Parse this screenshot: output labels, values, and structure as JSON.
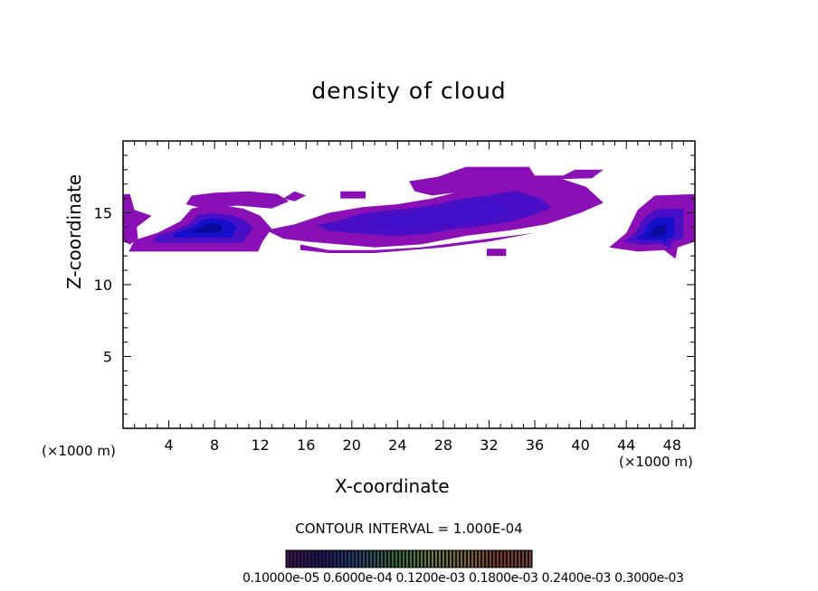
{
  "chart_data": {
    "type": "heatmap",
    "title": "density of cloud",
    "xlabel": "X-coordinate",
    "ylabel": "Z-coordinate",
    "x_unit_left": "(×1000 m)",
    "x_unit_right": "(×1000 m)",
    "xlim": [
      0,
      50
    ],
    "ylim": [
      0,
      20
    ],
    "xticks": [
      4,
      8,
      12,
      16,
      20,
      24,
      28,
      32,
      36,
      40,
      44,
      48
    ],
    "yticks": [
      5,
      10,
      15
    ],
    "contour_interval_text": "CONTOUR INTERVAL = 1.000E-04",
    "colorbar_labels_text": "0.10000e-05 0.6000e-04 0.1200e-03 0.1800e-03 0.2400e-03 0.3000e-03",
    "colors": {
      "low": "#8a10b5",
      "mid": "#4010c8",
      "high": "#1010cc",
      "core": "#0a0a9a"
    },
    "cloud_regions": [
      {
        "name": "left-edge",
        "level": 0.3,
        "points": [
          [
            0,
            13.0
          ],
          [
            0,
            16.3
          ],
          [
            0.6,
            16.3
          ],
          [
            1.0,
            15.2
          ],
          [
            2.5,
            14.8
          ],
          [
            1.2,
            14.0
          ],
          [
            1.3,
            13.2
          ],
          [
            0.6,
            12.8
          ]
        ]
      },
      {
        "name": "lower-left-layer",
        "level": 0.55,
        "points": [
          [
            0.5,
            12.3
          ],
          [
            11.8,
            12.3
          ],
          [
            12.2,
            13.0
          ],
          [
            13.0,
            13.9
          ],
          [
            12.0,
            14.8
          ],
          [
            10.5,
            15.3
          ],
          [
            8.0,
            15.6
          ],
          [
            6.0,
            15.3
          ],
          [
            5.0,
            14.4
          ],
          [
            3.0,
            13.6
          ],
          [
            1.0,
            13.1
          ]
        ]
      },
      {
        "name": "upper-left-layer",
        "level": 0.2,
        "points": [
          [
            5.5,
            15.6
          ],
          [
            6.0,
            16.2
          ],
          [
            8.0,
            16.4
          ],
          [
            11.0,
            16.5
          ],
          [
            13.5,
            16.3
          ],
          [
            14.5,
            15.8
          ],
          [
            13.0,
            15.3
          ],
          [
            10.0,
            15.5
          ],
          [
            7.0,
            15.3
          ]
        ]
      },
      {
        "name": "small-upper-left",
        "level": 0.15,
        "points": [
          [
            19.0,
            16.0
          ],
          [
            19.0,
            16.5
          ],
          [
            21.2,
            16.5
          ],
          [
            21.2,
            16.0
          ]
        ]
      },
      {
        "name": "upper-top-small",
        "level": 0.15,
        "points": [
          [
            14.0,
            16.0
          ],
          [
            15.0,
            16.5
          ],
          [
            16.0,
            16.2
          ],
          [
            15.0,
            15.8
          ]
        ]
      },
      {
        "name": "middle-band",
        "level": 0.4,
        "points": [
          [
            12.5,
            13.8
          ],
          [
            15.0,
            14.2
          ],
          [
            18.0,
            15.0
          ],
          [
            21.0,
            15.4
          ],
          [
            24.0,
            15.6
          ],
          [
            27.0,
            16.0
          ],
          [
            30.0,
            16.6
          ],
          [
            34.0,
            17.1
          ],
          [
            37.5,
            17.6
          ],
          [
            40.5,
            16.8
          ],
          [
            42.0,
            15.7
          ],
          [
            40.0,
            15.0
          ],
          [
            37.0,
            14.2
          ],
          [
            34.0,
            13.8
          ],
          [
            30.0,
            13.4
          ],
          [
            26.0,
            12.8
          ],
          [
            22.0,
            12.6
          ],
          [
            19.0,
            12.8
          ],
          [
            16.0,
            13.0
          ],
          [
            14.0,
            13.2
          ]
        ]
      },
      {
        "name": "middle-lower",
        "level": 0.25,
        "points": [
          [
            15.5,
            12.8
          ],
          [
            18.0,
            12.4
          ],
          [
            22.0,
            12.4
          ],
          [
            26.0,
            12.6
          ],
          [
            30.0,
            13.0
          ],
          [
            34.0,
            13.4
          ],
          [
            36.0,
            13.6
          ],
          [
            32.0,
            13.0
          ],
          [
            28.0,
            12.6
          ],
          [
            22.0,
            12.2
          ],
          [
            18.0,
            12.2
          ],
          [
            15.5,
            12.4
          ]
        ]
      },
      {
        "name": "top-center",
        "level": 0.15,
        "points": [
          [
            25.0,
            17.2
          ],
          [
            27.5,
            17.5
          ],
          [
            30.0,
            18.2
          ],
          [
            35.5,
            18.2
          ],
          [
            36.0,
            17.6
          ],
          [
            38.5,
            17.6
          ],
          [
            39.5,
            18.0
          ],
          [
            42.0,
            18.0
          ],
          [
            41.0,
            17.4
          ],
          [
            36.0,
            17.3
          ],
          [
            31.0,
            16.6
          ],
          [
            27.0,
            16.2
          ],
          [
            25.5,
            16.5
          ]
        ]
      },
      {
        "name": "small-bottom",
        "level": 0.15,
        "points": [
          [
            31.8,
            12.0
          ],
          [
            31.8,
            12.5
          ],
          [
            33.5,
            12.5
          ],
          [
            33.5,
            12.0
          ]
        ]
      },
      {
        "name": "right-edge",
        "level": 0.6,
        "points": [
          [
            42.5,
            12.6
          ],
          [
            44.0,
            13.6
          ],
          [
            45.0,
            15.2
          ],
          [
            46.5,
            16.2
          ],
          [
            50,
            16.3
          ],
          [
            50,
            13.0
          ],
          [
            48.5,
            12.6
          ],
          [
            48.3,
            11.8
          ],
          [
            47.3,
            12.4
          ],
          [
            45.0,
            12.3
          ]
        ]
      }
    ]
  }
}
